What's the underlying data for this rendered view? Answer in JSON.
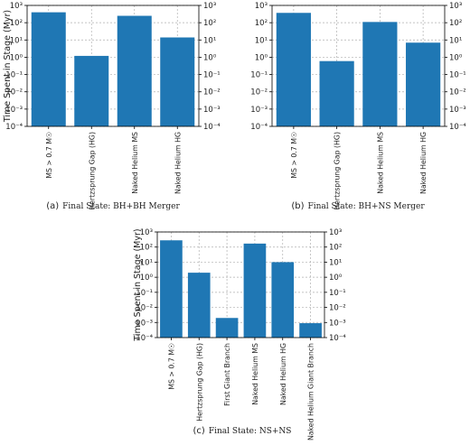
{
  "style": {
    "bar_color": "#1f77b4",
    "grid_color": "#b0b0b0"
  },
  "chart_data": [
    {
      "type": "bar",
      "panel": "a",
      "caption_tag": "(a)",
      "caption": "Final State: BH+BH Merger",
      "ylabel": "Time Spent in Stage (Myr)",
      "yscale": "log",
      "ylim": [
        0.0001,
        1000
      ],
      "yticks": [
        "10⁻⁴",
        "10⁻³",
        "10⁻²",
        "10⁻¹",
        "10⁰",
        "10¹",
        "10²",
        "10³"
      ],
      "twin_right_axis": true,
      "grid": true,
      "categories": [
        "MS > 0.7 M☉",
        "Hertzsprung Gap (HG)",
        "Naked Helium MS",
        "Naked Helium HG"
      ],
      "values": [
        400,
        1.2,
        250,
        14
      ]
    },
    {
      "type": "bar",
      "panel": "b",
      "caption_tag": "(b)",
      "caption": "Final State: BH+NS Merger",
      "ylabel": "",
      "yscale": "log",
      "ylim": [
        0.0001,
        1000
      ],
      "yticks": [
        "10⁻⁴",
        "10⁻³",
        "10⁻²",
        "10⁻¹",
        "10⁰",
        "10¹",
        "10²",
        "10³"
      ],
      "twin_right_axis": true,
      "grid": true,
      "categories": [
        "MS > 0.7 M☉",
        "Hertzsprung Gap (HG)",
        "Naked Helium MS",
        "Naked Helium HG"
      ],
      "values": [
        370,
        0.6,
        110,
        7
      ]
    },
    {
      "type": "bar",
      "panel": "c",
      "caption_tag": "(c)",
      "caption": "Final State: NS+NS",
      "ylabel": "Time Spent in Stage (Myr)",
      "yscale": "log",
      "ylim": [
        0.0001,
        1000
      ],
      "yticks": [
        "10⁻⁴",
        "10⁻³",
        "10⁻²",
        "10⁻¹",
        "10⁰",
        "10¹",
        "10²",
        "10³"
      ],
      "twin_right_axis": true,
      "grid": true,
      "categories": [
        "MS > 0.7 M☉",
        "Hertzsprung Gap (HG)",
        "First Giant Branch",
        "Naked Helium MS",
        "Naked Helium HG",
        "Naked Helium Giant Branch"
      ],
      "values": [
        280,
        2,
        0.002,
        170,
        10,
        0.0009
      ]
    }
  ]
}
